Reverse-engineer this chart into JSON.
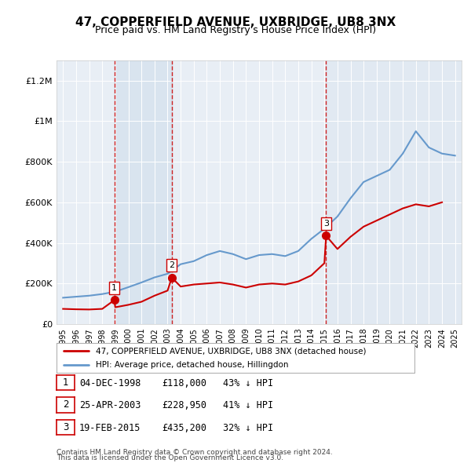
{
  "title": "47, COPPERFIELD AVENUE, UXBRIDGE, UB8 3NX",
  "subtitle": "Price paid vs. HM Land Registry's House Price Index (HPI)",
  "footer1": "Contains HM Land Registry data © Crown copyright and database right 2024.",
  "footer2": "This data is licensed under the Open Government Licence v3.0.",
  "legend_label_red": "47, COPPERFIELD AVENUE, UXBRIDGE, UB8 3NX (detached house)",
  "legend_label_blue": "HPI: Average price, detached house, Hillingdon",
  "ylim": [
    0,
    1300000
  ],
  "yticks": [
    0,
    200000,
    400000,
    600000,
    800000,
    1000000,
    1200000
  ],
  "ytick_labels": [
    "£0",
    "£200K",
    "£400K",
    "£600K",
    "£800K",
    "£1M",
    "£1.2M"
  ],
  "transactions": [
    {
      "num": 1,
      "date": "04-DEC-1998",
      "price": "£118,000",
      "hpi": "43% ↓ HPI",
      "year": 1998.92,
      "value": 118000
    },
    {
      "num": 2,
      "date": "25-APR-2003",
      "price": "£228,950",
      "hpi": "41% ↓ HPI",
      "year": 2003.32,
      "value": 228950
    },
    {
      "num": 3,
      "date": "19-FEB-2015",
      "price": "£435,200",
      "hpi": "32% ↓ HPI",
      "year": 2015.13,
      "value": 435200
    }
  ],
  "hpi_years": [
    1995,
    1996,
    1997,
    1998,
    1999,
    2000,
    2001,
    2002,
    2003,
    2004,
    2005,
    2006,
    2007,
    2008,
    2009,
    2010,
    2011,
    2012,
    2013,
    2014,
    2015,
    2016,
    2017,
    2018,
    2019,
    2020,
    2021,
    2022,
    2023,
    2024,
    2025
  ],
  "hpi_values": [
    130000,
    135000,
    140000,
    148000,
    160000,
    182000,
    205000,
    230000,
    248000,
    295000,
    310000,
    340000,
    360000,
    345000,
    320000,
    340000,
    345000,
    335000,
    360000,
    420000,
    470000,
    530000,
    620000,
    700000,
    730000,
    760000,
    840000,
    950000,
    870000,
    840000,
    830000
  ],
  "red_years": [
    1995,
    1996,
    1997,
    1998,
    1998.92,
    1999,
    2000,
    2001,
    2002,
    2003,
    2003.32,
    2004,
    2005,
    2006,
    2007,
    2008,
    2009,
    2010,
    2011,
    2012,
    2013,
    2014,
    2015,
    2015.13,
    2016,
    2017,
    2018,
    2019,
    2020,
    2021,
    2022,
    2023,
    2024
  ],
  "red_values": [
    75000,
    73000,
    72000,
    75000,
    118000,
    83000,
    95000,
    110000,
    140000,
    165000,
    228950,
    185000,
    195000,
    200000,
    205000,
    195000,
    180000,
    195000,
    200000,
    195000,
    210000,
    240000,
    300000,
    435200,
    370000,
    430000,
    480000,
    510000,
    540000,
    570000,
    590000,
    580000,
    600000
  ],
  "bg_color": "#f0f4f8",
  "plot_bg": "#e8eef5",
  "red_color": "#cc0000",
  "blue_color": "#6699cc",
  "dashed_color": "#cc0000",
  "shaded_color": "#d0dde8"
}
